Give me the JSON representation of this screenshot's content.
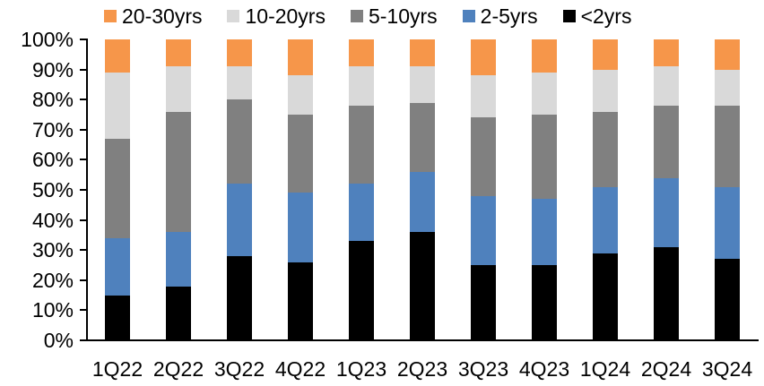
{
  "chart_data": {
    "type": "bar",
    "stacked": true,
    "percent_stacked": true,
    "title": "",
    "xlabel": "",
    "ylabel": "",
    "grid": false,
    "ylim": [
      0,
      100
    ],
    "yticks": [
      "0%",
      "10%",
      "20%",
      "30%",
      "40%",
      "50%",
      "60%",
      "70%",
      "80%",
      "90%",
      "100%"
    ],
    "categories": [
      "1Q22",
      "2Q22",
      "3Q22",
      "4Q22",
      "1Q23",
      "2Q23",
      "3Q23",
      "4Q23",
      "1Q24",
      "2Q24",
      "3Q24"
    ],
    "series": [
      {
        "name": "<2yrs",
        "color": "#000000",
        "values": [
          15,
          18,
          28,
          26,
          33,
          36,
          25,
          25,
          29,
          31,
          27
        ]
      },
      {
        "name": "2-5yrs",
        "color": "#4F81BD",
        "values": [
          19,
          18,
          24,
          23,
          19,
          20,
          23,
          22,
          22,
          23,
          24
        ]
      },
      {
        "name": "5-10yrs",
        "color": "#808080",
        "values": [
          33,
          40,
          28,
          26,
          26,
          23,
          26,
          28,
          25,
          24,
          27
        ]
      },
      {
        "name": "10-20yrs",
        "color": "#D9D9D9",
        "values": [
          22,
          15,
          11,
          13,
          13,
          12,
          14,
          14,
          14,
          13,
          12
        ]
      },
      {
        "name": "20-30yrs",
        "color": "#F6964A",
        "values": [
          11,
          9,
          9,
          12,
          9,
          9,
          12,
          11,
          10,
          9,
          10
        ]
      }
    ],
    "legend": {
      "position": "top",
      "items": [
        {
          "label": "20-30yrs",
          "color": "#F6964A"
        },
        {
          "label": "10-20yrs",
          "color": "#D9D9D9"
        },
        {
          "label": "5-10yrs",
          "color": "#808080"
        },
        {
          "label": "2-5yrs",
          "color": "#4F81BD"
        },
        {
          "label": "<2yrs",
          "color": "#000000"
        }
      ]
    }
  }
}
